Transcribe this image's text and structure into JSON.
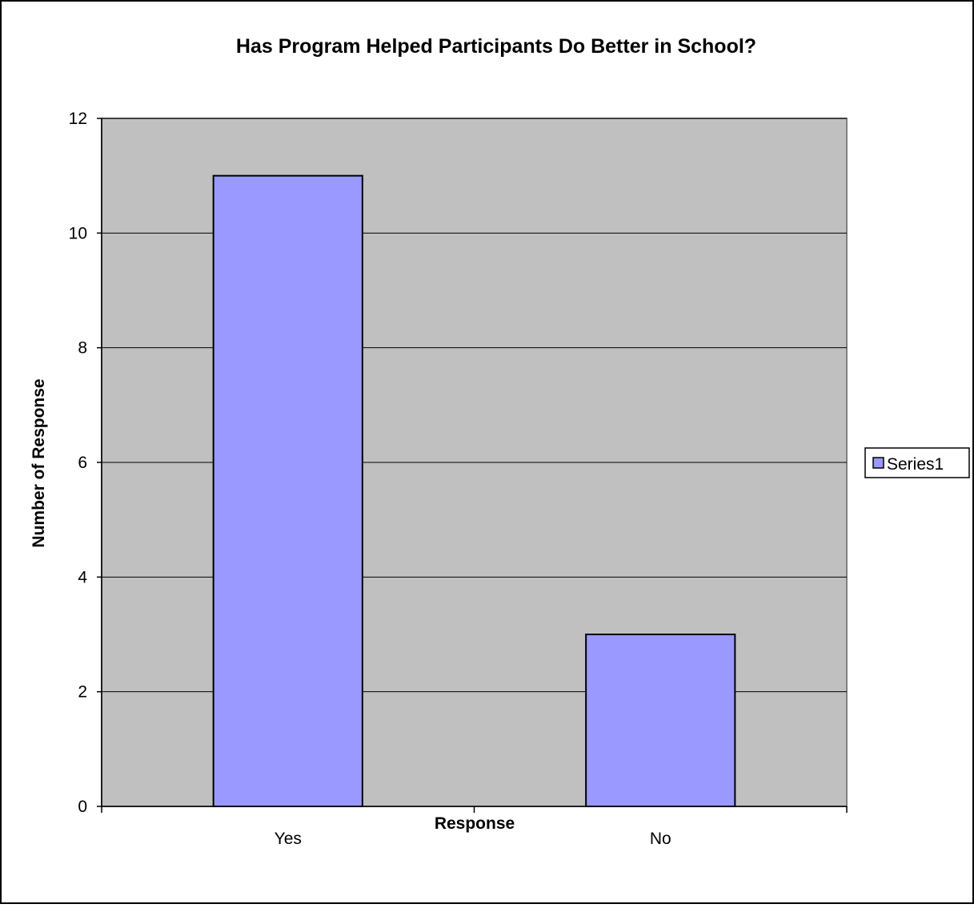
{
  "chart_data": {
    "type": "bar",
    "title": "Has Program Helped Participants Do Better in School?",
    "xlabel": "Response",
    "ylabel": "Number of Response",
    "categories": [
      "Yes",
      "No"
    ],
    "series": [
      {
        "name": "Series1",
        "values": [
          11,
          3
        ]
      }
    ],
    "ylim": [
      0,
      12
    ],
    "yticks": [
      0,
      2,
      4,
      6,
      8,
      10,
      12
    ],
    "grid": true,
    "legend_position": "right",
    "colors": {
      "bar_fill": "#9999ff",
      "bar_stroke": "#000000",
      "plot_background": "#c0c0c0",
      "gridline": "#000000",
      "page_background": "#ffffff"
    }
  }
}
